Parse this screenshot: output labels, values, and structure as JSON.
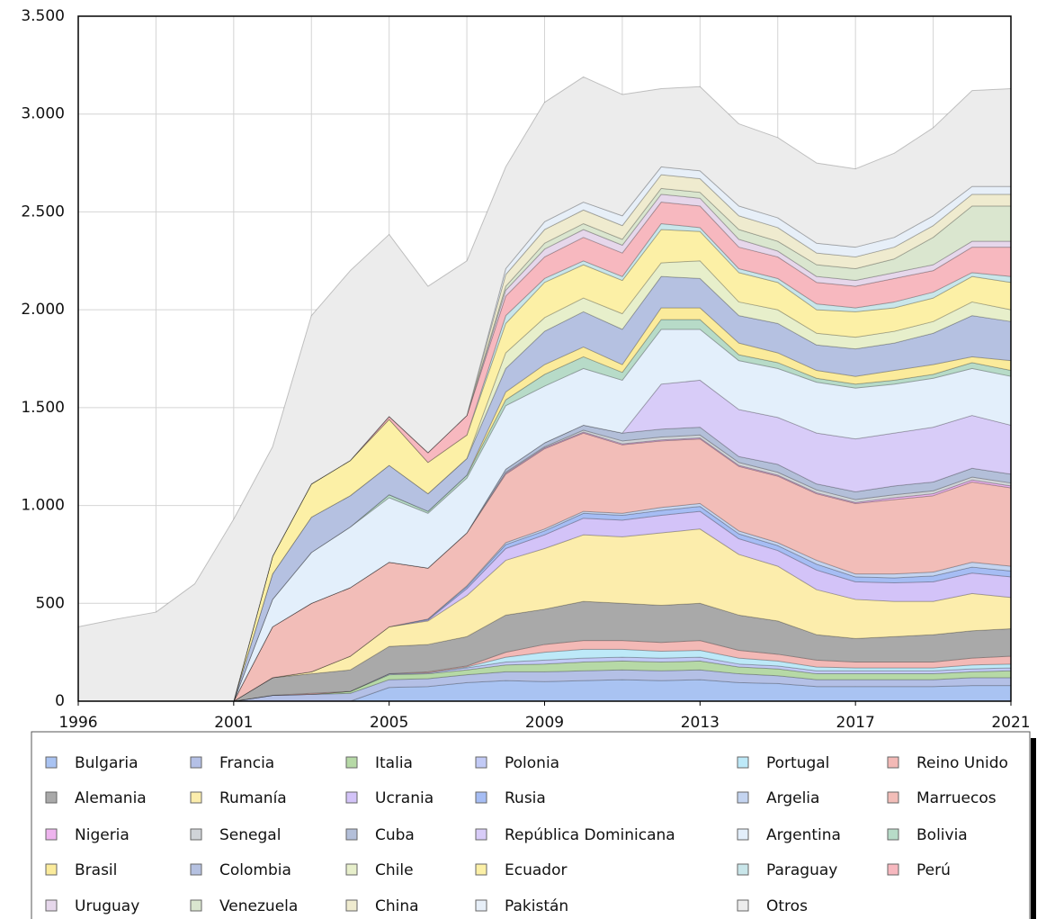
{
  "chart_data": {
    "type": "stacked_area",
    "categories": [
      "1996",
      null,
      null,
      null,
      "2001",
      null,
      null,
      null,
      "2005",
      null,
      null,
      null,
      "2009",
      null,
      null,
      null,
      "2013",
      null,
      null,
      null,
      "2017",
      null,
      null,
      null,
      "2021"
    ],
    "ylim": [
      0,
      3500
    ],
    "yticks": [
      0,
      500,
      {
        "value": 1000,
        "label": "1.000"
      },
      {
        "value": 1500,
        "label": "1.500"
      },
      {
        "value": 2000,
        "label": "2.000"
      },
      {
        "value": 2500,
        "label": "2.500"
      },
      {
        "value": 3000,
        "label": "3.000"
      },
      {
        "value": 3500,
        "label": "3.500"
      }
    ],
    "grid": true,
    "legend": "bottom",
    "series": [
      {
        "name": "Bulgaria",
        "color": "#a9c3f2",
        "values": [
          0,
          0,
          0,
          0,
          0,
          0,
          0,
          0,
          70,
          75,
          95,
          105,
          100,
          105,
          110,
          105,
          110,
          95,
          90,
          75,
          75,
          75,
          75,
          80,
          80
        ]
      },
      {
        "name": "Francia",
        "color": "#b4c0e6",
        "values": [
          0,
          0,
          0,
          0,
          0,
          30,
          35,
          40,
          40,
          40,
          40,
          45,
          50,
          50,
          50,
          50,
          50,
          45,
          40,
          35,
          35,
          35,
          35,
          40,
          40
        ]
      },
      {
        "name": "Italia",
        "color": "#b6d9a6",
        "values": [
          0,
          0,
          0,
          0,
          0,
          0,
          0,
          10,
          25,
          25,
          25,
          35,
          40,
          45,
          45,
          45,
          45,
          35,
          35,
          30,
          30,
          30,
          30,
          30,
          35
        ]
      },
      {
        "name": "Polonia",
        "color": "#c2caf6",
        "values": [
          0,
          0,
          0,
          0,
          0,
          0,
          0,
          0,
          5,
          5,
          10,
          15,
          20,
          20,
          20,
          20,
          20,
          15,
          15,
          15,
          15,
          15,
          15,
          15,
          15
        ]
      },
      {
        "name": "Portugal",
        "color": "#bde9f8",
        "values": [
          0,
          0,
          0,
          0,
          0,
          0,
          0,
          0,
          0,
          0,
          5,
          25,
          40,
          45,
          40,
          35,
          35,
          30,
          25,
          20,
          15,
          15,
          15,
          20,
          20
        ]
      },
      {
        "name": "Reino Unido",
        "color": "#f3b9b6",
        "values": [
          0,
          0,
          0,
          0,
          0,
          0,
          5,
          0,
          0,
          5,
          5,
          25,
          40,
          45,
          45,
          45,
          50,
          40,
          35,
          35,
          30,
          30,
          30,
          35,
          40
        ]
      },
      {
        "name": "Alemania",
        "color": "#a9a9a9",
        "values": [
          0,
          0,
          0,
          0,
          0,
          90,
          100,
          110,
          140,
          140,
          150,
          190,
          180,
          200,
          190,
          190,
          190,
          180,
          170,
          130,
          120,
          130,
          140,
          140,
          140
        ]
      },
      {
        "name": "Rumanía",
        "color": "#fcedac",
        "values": [
          0,
          0,
          0,
          0,
          0,
          0,
          10,
          70,
          100,
          120,
          210,
          280,
          310,
          340,
          340,
          370,
          380,
          310,
          280,
          230,
          200,
          180,
          170,
          190,
          160
        ]
      },
      {
        "name": "Ucrania",
        "color": "#d3c3f8",
        "values": [
          0,
          0,
          0,
          0,
          0,
          0,
          0,
          0,
          0,
          5,
          35,
          60,
          70,
          85,
          85,
          90,
          90,
          80,
          80,
          100,
          90,
          95,
          100,
          105,
          105
        ]
      },
      {
        "name": "Rusia",
        "color": "#a6bdf4",
        "values": [
          0,
          0,
          0,
          0,
          0,
          0,
          0,
          0,
          0,
          5,
          10,
          20,
          20,
          25,
          25,
          25,
          25,
          25,
          25,
          30,
          25,
          25,
          30,
          30,
          30
        ]
      },
      {
        "name": "Argelia",
        "color": "#c4d4f0",
        "values": [
          0,
          0,
          0,
          0,
          0,
          0,
          0,
          0,
          0,
          0,
          5,
          10,
          10,
          10,
          10,
          15,
          15,
          15,
          15,
          20,
          15,
          20,
          20,
          25,
          25
        ]
      },
      {
        "name": "Marruecos",
        "color": "#f2bdb8",
        "values": [
          0,
          0,
          0,
          0,
          0,
          260,
          350,
          350,
          330,
          260,
          270,
          350,
          410,
          400,
          350,
          340,
          330,
          330,
          340,
          340,
          360,
          380,
          390,
          410,
          400
        ]
      },
      {
        "name": "Nigeria",
        "color": "#eeb4ee",
        "values": [
          0,
          0,
          0,
          0,
          0,
          0,
          0,
          0,
          0,
          0,
          0,
          5,
          5,
          5,
          5,
          5,
          5,
          5,
          5,
          5,
          5,
          10,
          10,
          10,
          10
        ]
      },
      {
        "name": "Senegal",
        "color": "#d0d4d8",
        "values": [
          0,
          0,
          0,
          0,
          0,
          0,
          0,
          0,
          0,
          0,
          0,
          5,
          5,
          10,
          15,
          15,
          15,
          15,
          15,
          15,
          15,
          15,
          15,
          15,
          15
        ]
      },
      {
        "name": "Cuba",
        "color": "#b3bfd9",
        "values": [
          0,
          0,
          0,
          0,
          0,
          0,
          0,
          0,
          0,
          0,
          0,
          15,
          20,
          25,
          40,
          40,
          40,
          30,
          40,
          30,
          40,
          45,
          45,
          45,
          45
        ]
      },
      {
        "name": "República Dominicana",
        "color": "#d8ccf8",
        "values": [
          0,
          0,
          0,
          0,
          0,
          0,
          0,
          0,
          0,
          0,
          0,
          0,
          0,
          0,
          0,
          230,
          240,
          240,
          240,
          260,
          270,
          270,
          280,
          270,
          250
        ]
      },
      {
        "name": "Argentina",
        "color": "#e3effb",
        "values": [
          0,
          0,
          0,
          0,
          0,
          140,
          260,
          310,
          330,
          280,
          280,
          325,
          290,
          290,
          270,
          280,
          260,
          250,
          250,
          260,
          260,
          250,
          250,
          240,
          250
        ]
      },
      {
        "name": "Bolivia",
        "color": "#b7dbc8",
        "values": [
          0,
          0,
          0,
          0,
          0,
          0,
          0,
          0,
          15,
          10,
          15,
          30,
          60,
          60,
          40,
          50,
          50,
          30,
          30,
          20,
          20,
          20,
          20,
          30,
          30
        ]
      },
      {
        "name": "Brasil",
        "color": "#fbeb9b",
        "values": [
          0,
          0,
          0,
          0,
          0,
          0,
          0,
          0,
          0,
          0,
          0,
          40,
          50,
          50,
          40,
          60,
          60,
          60,
          50,
          40,
          40,
          50,
          50,
          30,
          50
        ]
      },
      {
        "name": "Colombia",
        "color": "#b5c1e1",
        "values": [
          0,
          0,
          0,
          0,
          0,
          130,
          180,
          160,
          150,
          90,
          85,
          120,
          170,
          180,
          180,
          160,
          150,
          140,
          150,
          130,
          140,
          140,
          160,
          210,
          200
        ]
      },
      {
        "name": "Chile",
        "color": "#e7efcb",
        "values": [
          0,
          0,
          0,
          0,
          0,
          0,
          0,
          0,
          0,
          0,
          0,
          80,
          70,
          70,
          80,
          70,
          90,
          70,
          70,
          60,
          60,
          60,
          60,
          70,
          60
        ]
      },
      {
        "name": "Ecuador",
        "color": "#fcf0a6",
        "values": [
          0,
          0,
          0,
          0,
          0,
          90,
          170,
          180,
          235,
          160,
          120,
          150,
          180,
          170,
          170,
          170,
          150,
          150,
          140,
          120,
          130,
          120,
          120,
          130,
          140
        ]
      },
      {
        "name": "Paraguay",
        "color": "#c9e6ea",
        "values": [
          0,
          0,
          0,
          0,
          0,
          0,
          0,
          0,
          0,
          0,
          0,
          40,
          20,
          20,
          20,
          30,
          20,
          20,
          20,
          30,
          20,
          30,
          30,
          20,
          30
        ]
      },
      {
        "name": "Perú",
        "color": "#f7b8bf",
        "values": [
          0,
          0,
          0,
          0,
          0,
          0,
          0,
          0,
          15,
          50,
          100,
          100,
          110,
          120,
          120,
          110,
          110,
          110,
          110,
          110,
          110,
          120,
          110,
          130,
          150
        ]
      },
      {
        "name": "Uruguay",
        "color": "#e6d7eb",
        "values": [
          0,
          0,
          0,
          0,
          0,
          0,
          0,
          0,
          0,
          0,
          0,
          30,
          40,
          40,
          40,
          40,
          40,
          40,
          30,
          30,
          30,
          30,
          30,
          30,
          30
        ]
      },
      {
        "name": "Venezuela",
        "color": "#dae6cf",
        "values": [
          0,
          0,
          0,
          0,
          0,
          0,
          0,
          0,
          0,
          0,
          0,
          20,
          30,
          30,
          30,
          30,
          30,
          50,
          50,
          60,
          60,
          70,
          140,
          180,
          180
        ]
      },
      {
        "name": "China",
        "color": "#efebcf",
        "values": [
          0,
          0,
          0,
          0,
          0,
          0,
          0,
          0,
          0,
          0,
          0,
          60,
          70,
          70,
          70,
          70,
          70,
          70,
          70,
          60,
          60,
          60,
          60,
          60,
          60
        ]
      },
      {
        "name": "Pakistán",
        "color": "#e7eff8",
        "values": [
          0,
          0,
          0,
          0,
          0,
          0,
          0,
          0,
          0,
          0,
          0,
          30,
          40,
          40,
          50,
          40,
          40,
          50,
          50,
          50,
          50,
          50,
          50,
          40,
          40
        ]
      },
      {
        "name": "Otros",
        "color": "#ececec",
        "values": [
          380,
          420,
          455,
          600,
          930,
          560,
          860,
          970,
          930,
          850,
          790,
          520,
          610,
          640,
          620,
          400,
          430,
          420,
          410,
          410,
          400,
          430,
          450,
          490,
          500
        ]
      }
    ]
  }
}
